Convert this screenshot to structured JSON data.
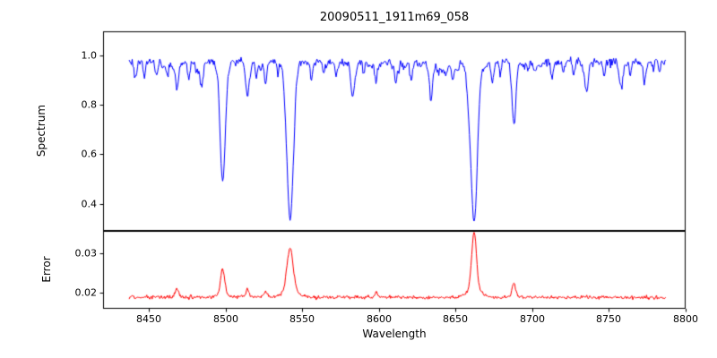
{
  "chart_data": {
    "type": "line",
    "title": "20090511_1911m69_058",
    "xlabel": "Wavelength",
    "grid": false,
    "legend": null,
    "xlim": [
      8420,
      8800
    ],
    "wavelength_range": [
      8437,
      8787
    ],
    "sample_step": 0.5,
    "noise_seed": 11,
    "x_ticks": {
      "values": [
        8450,
        8500,
        8550,
        8600,
        8650,
        8700,
        8750,
        8800
      ],
      "labels": [
        "8450",
        "8500",
        "8550",
        "8600",
        "8650",
        "8700",
        "8750",
        "8800"
      ]
    },
    "panels": [
      {
        "ylabel": "Spectrum",
        "color": "#0000ff",
        "ylim": [
          0.29,
          1.098
        ],
        "y_ticks": {
          "values": [
            1.0,
            0.8,
            0.6,
            0.4
          ],
          "labels": [
            "1.0",
            "0.8",
            "0.6",
            "0.4"
          ]
        },
        "continuum": 0.975,
        "noise_sigma": 0.0085,
        "absorption_lines": [
          {
            "center": 8498,
            "min_flux": 0.5,
            "sigma": 1.6
          },
          {
            "center": 8542,
            "min_flux": 0.345,
            "sigma": 2.2
          },
          {
            "center": 8662,
            "min_flux": 0.345,
            "sigma": 2.0
          },
          {
            "center": 8688,
            "min_flux": 0.72,
            "sigma": 1.2
          }
        ],
        "minor_lines": [
          {
            "center": 8433,
            "min_flux": 0.88,
            "sigma": 0.9
          },
          {
            "center": 8441,
            "min_flux": 0.905,
            "sigma": 0.8
          },
          {
            "center": 8447,
            "min_flux": 0.915,
            "sigma": 0.7
          },
          {
            "center": 8455,
            "min_flux": 0.91,
            "sigma": 0.8
          },
          {
            "center": 8462,
            "min_flux": 0.92,
            "sigma": 0.7
          },
          {
            "center": 8468,
            "min_flux": 0.875,
            "sigma": 1.0
          },
          {
            "center": 8476,
            "min_flux": 0.9,
            "sigma": 0.8
          },
          {
            "center": 8484,
            "min_flux": 0.92,
            "sigma": 0.7
          },
          {
            "center": 8514,
            "min_flux": 0.845,
            "sigma": 1.1
          },
          {
            "center": 8520,
            "min_flux": 0.91,
            "sigma": 0.7
          },
          {
            "center": 8526,
            "min_flux": 0.895,
            "sigma": 0.8
          },
          {
            "center": 8534,
            "min_flux": 0.93,
            "sigma": 0.6
          },
          {
            "center": 8556,
            "min_flux": 0.925,
            "sigma": 0.7
          },
          {
            "center": 8564,
            "min_flux": 0.93,
            "sigma": 0.6
          },
          {
            "center": 8572,
            "min_flux": 0.92,
            "sigma": 0.7
          },
          {
            "center": 8582,
            "min_flux": 0.91,
            "sigma": 0.8
          },
          {
            "center": 8590,
            "min_flux": 0.93,
            "sigma": 0.6
          },
          {
            "center": 8598,
            "min_flux": 0.905,
            "sigma": 0.8
          },
          {
            "center": 8611,
            "min_flux": 0.92,
            "sigma": 0.7
          },
          {
            "center": 8621,
            "min_flux": 0.9,
            "sigma": 0.8
          },
          {
            "center": 8634,
            "min_flux": 0.92,
            "sigma": 0.7
          },
          {
            "center": 8641,
            "min_flux": 0.93,
            "sigma": 0.6
          },
          {
            "center": 8648,
            "min_flux": 0.905,
            "sigma": 0.8
          },
          {
            "center": 8674,
            "min_flux": 0.89,
            "sigma": 0.9
          },
          {
            "center": 8679,
            "min_flux": 0.92,
            "sigma": 0.6
          },
          {
            "center": 8713,
            "min_flux": 0.91,
            "sigma": 0.8
          },
          {
            "center": 8720,
            "min_flux": 0.93,
            "sigma": 0.6
          },
          {
            "center": 8727,
            "min_flux": 0.92,
            "sigma": 0.7
          },
          {
            "center": 8736,
            "min_flux": 0.905,
            "sigma": 0.8
          },
          {
            "center": 8747,
            "min_flux": 0.92,
            "sigma": 0.7
          },
          {
            "center": 8757,
            "min_flux": 0.9,
            "sigma": 0.8
          },
          {
            "center": 8764,
            "min_flux": 0.93,
            "sigma": 0.6
          },
          {
            "center": 8773,
            "min_flux": 0.91,
            "sigma": 0.7
          },
          {
            "center": 8783,
            "min_flux": 0.93,
            "sigma": 0.6
          }
        ],
        "weak_line_forest": {
          "count": 70,
          "max_extra_depth": 0.06
        }
      },
      {
        "ylabel": "Error",
        "color": "#ff0000",
        "ylim": [
          0.0159,
          0.0357
        ],
        "y_ticks": {
          "values": [
            0.03,
            0.02
          ],
          "labels": [
            "0.03",
            "0.02"
          ]
        },
        "baseline": 0.0188,
        "noise_sigma": 0.00022,
        "error_peaks": [
          {
            "center": 8498,
            "peak": 0.0253,
            "sigma": 1.3
          },
          {
            "center": 8542,
            "peak": 0.03,
            "sigma": 2.0
          },
          {
            "center": 8662,
            "peak": 0.0335,
            "sigma": 1.6
          },
          {
            "center": 8688,
            "peak": 0.0222,
            "sigma": 1.0
          },
          {
            "center": 8433,
            "peak": 0.0205,
            "sigma": 1.0
          },
          {
            "center": 8468,
            "peak": 0.0207,
            "sigma": 1.0
          },
          {
            "center": 8514,
            "peak": 0.0206,
            "sigma": 1.0
          },
          {
            "center": 8526,
            "peak": 0.0202,
            "sigma": 0.9
          },
          {
            "center": 8598,
            "peak": 0.02,
            "sigma": 0.9
          }
        ]
      }
    ]
  }
}
